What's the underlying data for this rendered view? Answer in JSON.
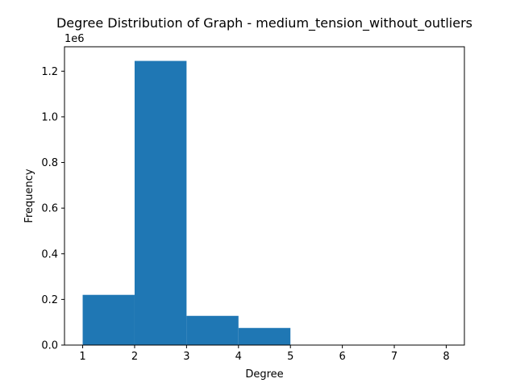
{
  "chart_data": {
    "type": "bar",
    "title": "Degree Distribution of Graph - medium_tension_without_outliers",
    "xlabel": "Degree",
    "ylabel": "Frequency",
    "offset_label": "1e6",
    "bins": [
      {
        "x0": 1,
        "x1": 2,
        "value": 220000
      },
      {
        "x0": 2,
        "x1": 3,
        "value": 1245000
      },
      {
        "x0": 3,
        "x1": 4,
        "value": 128000
      },
      {
        "x0": 4,
        "x1": 5,
        "value": 75000
      },
      {
        "x0": 5,
        "x1": 6,
        "value": 0
      },
      {
        "x0": 6,
        "x1": 7,
        "value": 0
      },
      {
        "x0": 7,
        "x1": 8,
        "value": 0
      }
    ],
    "xlim": [
      0.65,
      8.35
    ],
    "ylim": [
      0,
      1307000
    ],
    "x_ticks": [
      1,
      2,
      3,
      4,
      5,
      6,
      7,
      8
    ],
    "x_tick_labels": [
      "1",
      "2",
      "3",
      "4",
      "5",
      "6",
      "7",
      "8"
    ],
    "y_ticks": [
      0,
      200000,
      400000,
      600000,
      800000,
      1000000,
      1200000
    ],
    "y_tick_labels": [
      "0.0",
      "0.2",
      "0.4",
      "0.6",
      "0.8",
      "1.0",
      "1.2"
    ],
    "bar_color": "#1f77b4",
    "grid": false
  }
}
